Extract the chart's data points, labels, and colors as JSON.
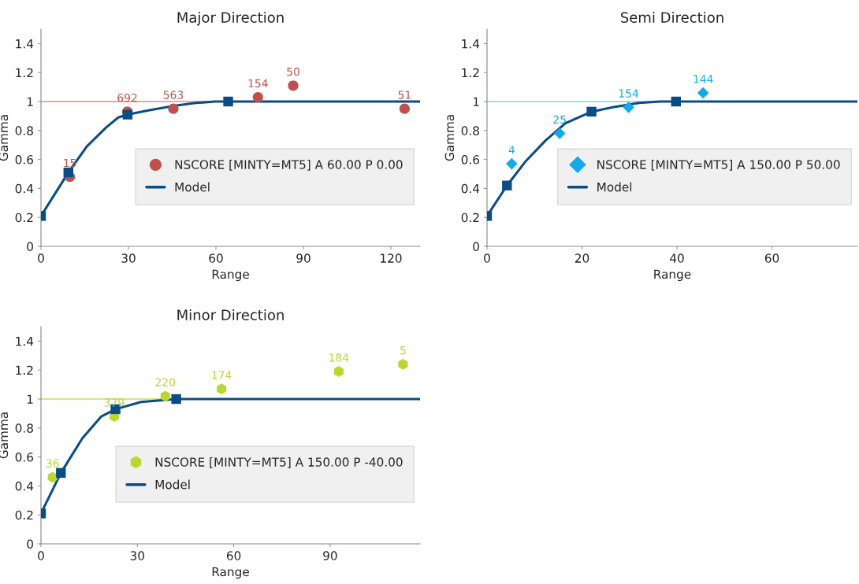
{
  "chart_data": [
    {
      "type": "scatter",
      "title": "Major Direction",
      "xlabel": "Range",
      "ylabel": "Gamma",
      "xlim": [
        0,
        130
      ],
      "ylim": [
        0,
        1.5
      ],
      "xticks": [
        0,
        30,
        60,
        90,
        120
      ],
      "yticks": [
        0,
        0.2,
        0.4,
        0.6,
        0.8,
        1,
        1.2,
        1.4
      ],
      "grid": false,
      "legend": "right",
      "ref_lines": [
        {
          "axis": "y",
          "value": 1,
          "color": "#e08a88"
        }
      ],
      "annotations": [
        {
          "text": "15",
          "x": 9.9,
          "y": 0.48
        },
        {
          "text": "692",
          "x": 29.6,
          "y": 0.93
        },
        {
          "text": "563",
          "x": 45.4,
          "y": 0.95
        },
        {
          "text": "154",
          "x": 74.4,
          "y": 1.03
        },
        {
          "text": "50",
          "x": 86.5,
          "y": 1.11
        },
        {
          "text": "51",
          "x": 124.7,
          "y": 0.95
        }
      ],
      "series": [
        {
          "name": "NSCORE [MINTY=MT5] A 60.00 P 0.00",
          "marker": "circle",
          "color": "#c0504d",
          "x": [
            9.9,
            29.6,
            45.4,
            74.4,
            86.5,
            124.7
          ],
          "values": [
            0.48,
            0.93,
            0.95,
            1.03,
            1.11,
            0.95
          ]
        },
        {
          "name": "Model",
          "type": "line",
          "color": "#0a4d85",
          "x": [
            0,
            9.4,
            15.7,
            22.3,
            26.5,
            29.7,
            37.2,
            45.6,
            53.1,
            59.7,
            64.2,
            130
          ],
          "values": [
            0.21,
            0.51,
            0.69,
            0.82,
            0.89,
            0.91,
            0.94,
            0.97,
            0.99,
            1.0,
            1.0,
            1.0
          ]
        },
        {
          "marker": "square",
          "color": "#0a4d85",
          "x": [
            0,
            9.4,
            29.7,
            64.2
          ],
          "values": [
            0.21,
            0.51,
            0.91,
            1.0
          ]
        }
      ]
    },
    {
      "type": "scatter",
      "title": "Semi Direction",
      "xlabel": "Range",
      "ylabel": "Gamma",
      "xlim": [
        0,
        78
      ],
      "ylim": [
        0,
        1.5
      ],
      "xticks": [
        0,
        20,
        40,
        60
      ],
      "yticks": [
        0,
        0.2,
        0.4,
        0.6,
        0.8,
        1,
        1.2,
        1.4
      ],
      "grid": false,
      "legend": "right",
      "ref_lines": [
        {
          "axis": "y",
          "value": 1,
          "color": "#7fd0f2"
        }
      ],
      "annotations": [
        {
          "text": "4",
          "x": 5.2,
          "y": 0.57
        },
        {
          "text": "25",
          "x": 15.3,
          "y": 0.78
        },
        {
          "text": "154",
          "x": 29.8,
          "y": 0.96
        },
        {
          "text": "144",
          "x": 45.5,
          "y": 1.06
        }
      ],
      "series": [
        {
          "name": "NSCORE [MINTY=MT5] A 150.00 P 50.00",
          "marker": "diamond",
          "color": "#14a9ea",
          "x": [
            5.2,
            15.3,
            29.8,
            45.5
          ],
          "values": [
            0.57,
            0.78,
            0.96,
            1.06
          ]
        },
        {
          "name": "Model",
          "type": "line",
          "color": "#0a4d85",
          "x": [
            0,
            4.2,
            8.2,
            12.3,
            16.5,
            22.0,
            26.5,
            32.0,
            36.4,
            39.8,
            78
          ],
          "values": [
            0.21,
            0.42,
            0.59,
            0.73,
            0.85,
            0.93,
            0.96,
            0.99,
            1.0,
            1.0,
            1.0
          ]
        },
        {
          "marker": "square",
          "color": "#0a4d85",
          "x": [
            0,
            4.2,
            22.0,
            39.8
          ],
          "values": [
            0.21,
            0.42,
            0.93,
            1.0
          ]
        }
      ]
    },
    {
      "type": "scatter",
      "title": "Minor Direction",
      "xlabel": "Range",
      "ylabel": "Gamma",
      "xlim": [
        0,
        118
      ],
      "ylim": [
        0,
        1.5
      ],
      "xticks": [
        0,
        30,
        60,
        90
      ],
      "yticks": [
        0,
        0.2,
        0.4,
        0.6,
        0.8,
        1,
        1.2,
        1.4
      ],
      "grid": false,
      "legend": "right",
      "ref_lines": [
        {
          "axis": "y",
          "value": 1,
          "color": "#c9dd5a"
        }
      ],
      "annotations": [
        {
          "text": "36",
          "x": 3.6,
          "y": 0.46
        },
        {
          "text": "379",
          "x": 22.8,
          "y": 0.88
        },
        {
          "text": "220",
          "x": 38.7,
          "y": 1.02
        },
        {
          "text": "174",
          "x": 56.2,
          "y": 1.07
        },
        {
          "text": "184",
          "x": 92.7,
          "y": 1.19
        },
        {
          "text": "5",
          "x": 112.7,
          "y": 1.24
        }
      ],
      "series": [
        {
          "name": "NSCORE [MINTY=MT5] A 150.00 P -40.00",
          "color": "#bcd631",
          "x": [
            3.6,
            22.8,
            38.7,
            56.2,
            92.7,
            112.7
          ],
          "values": [
            0.46,
            0.88,
            1.02,
            1.07,
            1.19,
            1.24
          ]
        },
        {
          "name": "Model",
          "type": "line",
          "color": "#0a4d85",
          "x": [
            0,
            6.2,
            12.9,
            18.8,
            23.2,
            31.1,
            42.1,
            118
          ],
          "values": [
            0.21,
            0.49,
            0.73,
            0.88,
            0.93,
            0.98,
            1.0,
            1.0
          ]
        },
        {
          "marker": "square",
          "color": "#0a4d85",
          "x": [
            0,
            6.2,
            23.2,
            42.1
          ],
          "values": [
            0.21,
            0.49,
            0.93,
            1.0
          ]
        }
      ]
    }
  ]
}
